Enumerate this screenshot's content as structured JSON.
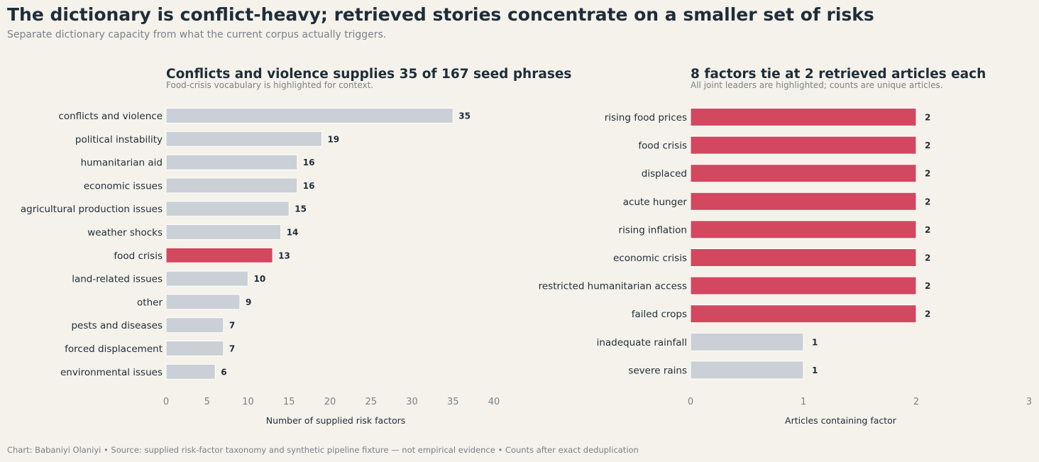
{
  "title": "The dictionary is conflict-heavy; retrieved stories concentrate on a smaller set of risks",
  "subtitle": "Separate dictionary capacity from what the current corpus actually triggers.",
  "footer": "Chart: Babaniyi Olaniyi  •  Source: supplied risk-factor taxonomy and synthetic pipeline fixture — not empirical evidence  •  Counts after exact deduplication",
  "colors": {
    "highlight": "#d2485f",
    "base": "#cad0d5",
    "text": "#1f2d3a",
    "muted": "#7b8288",
    "background": "#f4f2ea"
  },
  "chart_data": [
    {
      "type": "bar",
      "orientation": "horizontal",
      "title": "Conflicts and violence supplies 35 of 167 seed phrases",
      "subtitle": "Food-crisis vocabulary is highlighted for context.",
      "xlabel": "Number of supplied risk factors",
      "ylabel": "",
      "xlim": [
        0,
        40
      ],
      "xticks": [
        0,
        5,
        10,
        15,
        20,
        25,
        30,
        35,
        40
      ],
      "grid": false,
      "categories": [
        "conflicts and violence",
        "political instability",
        "humanitarian aid",
        "economic issues",
        "agricultural production issues",
        "weather shocks",
        "food crisis",
        "land-related issues",
        "other",
        "pests and diseases",
        "forced displacement",
        "environmental issues"
      ],
      "values": [
        35,
        19,
        16,
        16,
        15,
        14,
        13,
        10,
        9,
        7,
        7,
        6
      ],
      "highlighted": [
        "food crisis"
      ]
    },
    {
      "type": "bar",
      "orientation": "horizontal",
      "title": "8 factors tie at 2 retrieved articles each",
      "subtitle": "All joint leaders are highlighted; counts are unique articles.",
      "xlabel": "Articles containing factor",
      "ylabel": "",
      "xlim": [
        0,
        3
      ],
      "xticks": [
        0,
        1,
        2,
        3
      ],
      "grid": false,
      "categories": [
        "rising food prices",
        "food crisis",
        "displaced",
        "acute hunger",
        "rising inflation",
        "economic crisis",
        "restricted humanitarian access",
        "failed crops",
        "inadequate rainfall",
        "severe rains"
      ],
      "values": [
        2,
        2,
        2,
        2,
        2,
        2,
        2,
        2,
        1,
        1
      ],
      "highlighted": [
        "rising food prices",
        "food crisis",
        "displaced",
        "acute hunger",
        "rising inflation",
        "economic crisis",
        "restricted humanitarian access",
        "failed crops"
      ]
    }
  ]
}
